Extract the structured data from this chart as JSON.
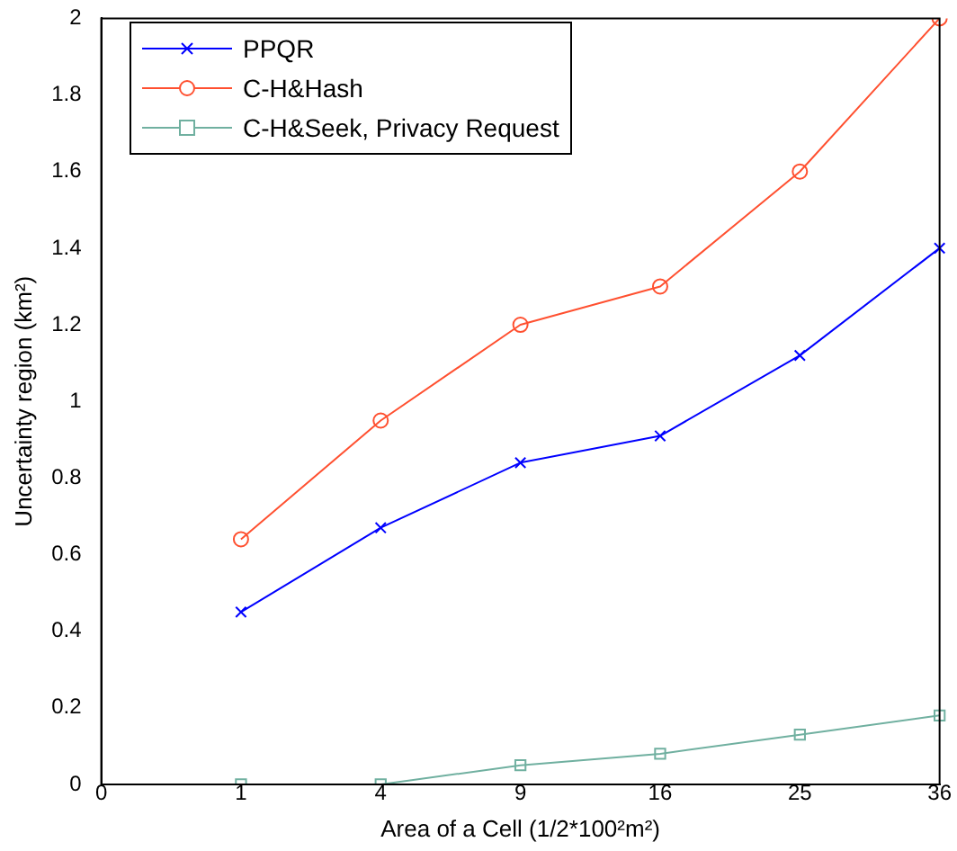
{
  "chart_data": {
    "type": "line",
    "xlabel": "Area of a Cell (1/2*100²m²)",
    "ylabel": "Uncertainty region (km²)",
    "categories": [
      "0",
      "1",
      "4",
      "9",
      "16",
      "25",
      "36"
    ],
    "ylim": [
      0,
      2
    ],
    "yticks": [
      0,
      0.2,
      0.4,
      0.6,
      0.8,
      1,
      1.2,
      1.4,
      1.6,
      1.8,
      2
    ],
    "grid": false,
    "legend": "top left",
    "series": [
      {
        "name": "PPQR",
        "color": "#0000ff",
        "marker": "cross",
        "values": [
          null,
          0.45,
          0.67,
          0.84,
          0.91,
          1.12,
          1.4
        ]
      },
      {
        "name": "C-H&Hash",
        "color": "#ff5030",
        "marker": "circle",
        "values": [
          null,
          0.64,
          0.95,
          1.2,
          1.3,
          1.6,
          2.0
        ]
      },
      {
        "name": "C-H&Seek, Privacy Request",
        "color": "#70b0a0",
        "marker": "square",
        "values": [
          null,
          0.0,
          0.0,
          0.05,
          0.08,
          0.13,
          0.18
        ]
      }
    ]
  }
}
